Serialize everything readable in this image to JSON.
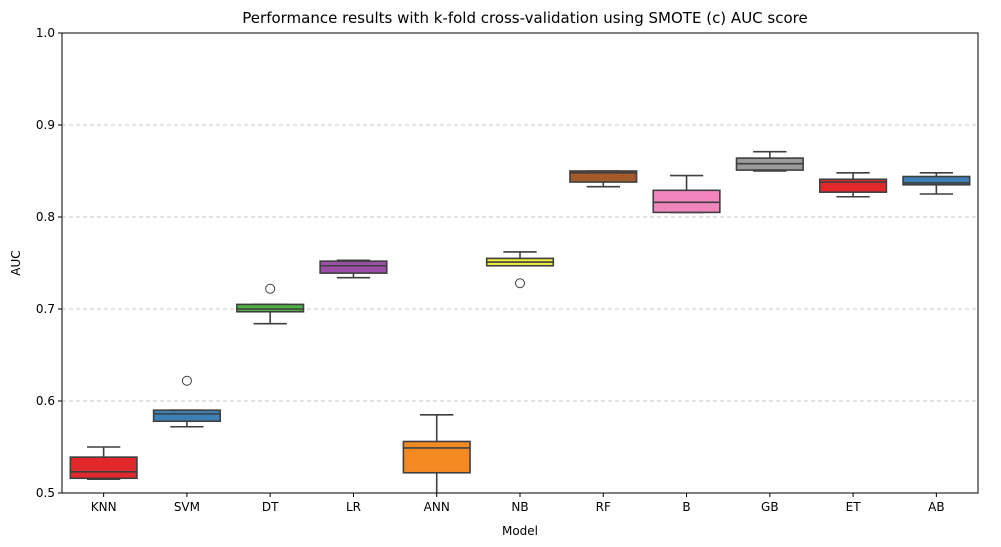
{
  "chart_data": {
    "type": "box",
    "title": "Performance results with k-fold cross-validation using SMOTE (c) AUC score",
    "xlabel": "Model",
    "ylabel": "AUC",
    "ylim": [
      0.5,
      1.0
    ],
    "yticks": [
      "0.5",
      "0.6",
      "0.7",
      "0.8",
      "0.9",
      "1.0"
    ],
    "grid": "horizontal dashed",
    "categories": [
      "KNN",
      "SVM",
      "DT",
      "LR",
      "ANN",
      "NB",
      "RF",
      "B",
      "GB",
      "ET",
      "AB"
    ],
    "series": [
      {
        "category": "KNN",
        "color": "#e3282b",
        "whislo": 0.515,
        "q1": 0.516,
        "median": 0.523,
        "q3": 0.539,
        "whishi": 0.55,
        "fliers": []
      },
      {
        "category": "SVM",
        "color": "#3d7fb5",
        "whislo": 0.572,
        "q1": 0.578,
        "median": 0.586,
        "q3": 0.59,
        "whishi": 0.59,
        "fliers": [
          0.622
        ]
      },
      {
        "category": "DT",
        "color": "#4fb049",
        "whislo": 0.684,
        "q1": 0.697,
        "median": 0.7,
        "q3": 0.705,
        "whishi": 0.705,
        "fliers": [
          0.722
        ]
      },
      {
        "category": "LR",
        "color": "#9c4ea6",
        "whislo": 0.734,
        "q1": 0.739,
        "median": 0.747,
        "q3": 0.752,
        "whishi": 0.753,
        "fliers": []
      },
      {
        "category": "ANN",
        "color": "#f68a22",
        "whislo": 0.49,
        "q1": 0.522,
        "median": 0.549,
        "q3": 0.556,
        "whishi": 0.585,
        "fliers": []
      },
      {
        "category": "NB",
        "color": "#ecec3a",
        "whislo": 0.747,
        "q1": 0.747,
        "median": 0.751,
        "q3": 0.755,
        "whishi": 0.762,
        "fliers": [
          0.728
        ]
      },
      {
        "category": "RF",
        "color": "#a45b2c",
        "whislo": 0.833,
        "q1": 0.838,
        "median": 0.848,
        "q3": 0.85,
        "whishi": 0.85,
        "fliers": []
      },
      {
        "category": "B",
        "color": "#f186be",
        "whislo": 0.805,
        "q1": 0.805,
        "median": 0.816,
        "q3": 0.829,
        "whishi": 0.845,
        "fliers": []
      },
      {
        "category": "GB",
        "color": "#9b9b9b",
        "whislo": 0.85,
        "q1": 0.851,
        "median": 0.858,
        "q3": 0.864,
        "whishi": 0.871,
        "fliers": []
      },
      {
        "category": "ET",
        "color": "#e3282b",
        "whislo": 0.822,
        "q1": 0.827,
        "median": 0.838,
        "q3": 0.841,
        "whishi": 0.848,
        "fliers": []
      },
      {
        "category": "AB",
        "color": "#3d7fb5",
        "whislo": 0.825,
        "q1": 0.835,
        "median": 0.837,
        "q3": 0.844,
        "whishi": 0.848,
        "fliers": []
      }
    ]
  }
}
